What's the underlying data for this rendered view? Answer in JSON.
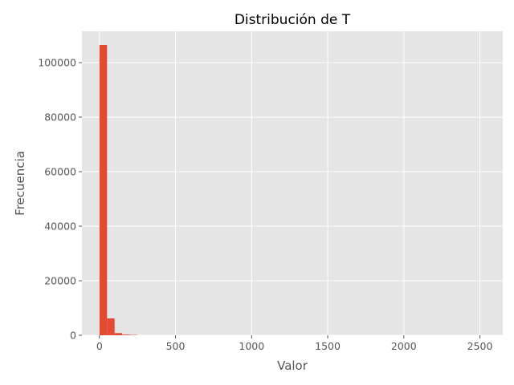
{
  "chart_data": {
    "type": "bar",
    "title": "Distribución de T",
    "xlabel": "Valor",
    "ylabel": "Frecuencia",
    "xlim": [
      -115,
      2650
    ],
    "ylim": [
      0,
      111500
    ],
    "x_ticks": [
      0,
      500,
      1000,
      1500,
      2000,
      2500
    ],
    "x_tick_labels": [
      "0",
      "500",
      "1000",
      "1500",
      "2000",
      "2500"
    ],
    "y_ticks": [
      0,
      20000,
      40000,
      60000,
      80000,
      100000
    ],
    "y_tick_labels": [
      "0",
      "20000",
      "40000",
      "60000",
      "80000",
      "100000"
    ],
    "grid": true,
    "bar_color": "#E24A33",
    "background_color": "#E5E5E5",
    "bin_width": 50,
    "bins": [
      {
        "x0": 0,
        "x1": 50,
        "value": 106500
      },
      {
        "x0": 50,
        "x1": 100,
        "value": 6200
      },
      {
        "x0": 100,
        "x1": 150,
        "value": 800
      },
      {
        "x0": 150,
        "x1": 200,
        "value": 250
      },
      {
        "x0": 200,
        "x1": 250,
        "value": 120
      }
    ]
  }
}
